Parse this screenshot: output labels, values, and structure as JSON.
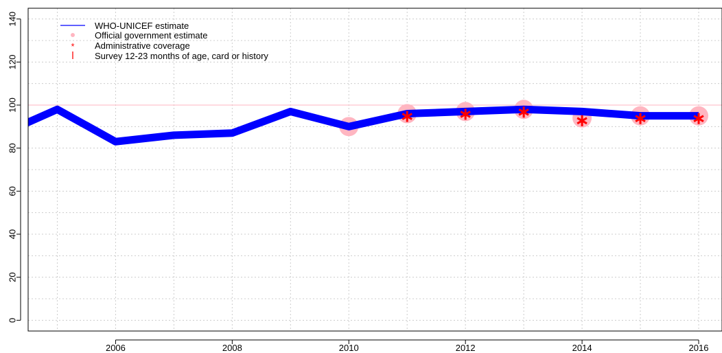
{
  "chart_data": {
    "type": "line",
    "title": "",
    "xlabel": "",
    "ylabel": "",
    "xlim": [
      2004.5,
      2016.4
    ],
    "ylim": [
      -5,
      145
    ],
    "x_ticks": [
      "2006",
      "2008",
      "2010",
      "2012",
      "2014",
      "2016"
    ],
    "y_ticks": [
      "0",
      "20",
      "40",
      "60",
      "80",
      "100",
      "120",
      "140"
    ],
    "grid": true,
    "reference_line": 100,
    "legend_position": "top-left",
    "legend": [
      {
        "label": "WHO-UNICEF estimate",
        "marker": "line",
        "color": "#0000ff"
      },
      {
        "label": "Official government estimate",
        "marker": "circle",
        "color": "#ffb6c1"
      },
      {
        "label": "Administrative coverage",
        "marker": "asterisk",
        "color": "#ff0000"
      },
      {
        "label": "Survey 12-23 months of age, card or history",
        "marker": "bar",
        "color": "#ff0000"
      }
    ],
    "series": [
      {
        "name": "WHO-UNICEF estimate",
        "color": "#0000ff",
        "x": [
          2004,
          2005,
          2006,
          2007,
          2008,
          2009,
          2010,
          2011,
          2012,
          2013,
          2014,
          2015,
          2016
        ],
        "values": [
          86,
          98,
          83,
          86,
          87,
          97,
          90,
          96,
          97,
          98,
          97,
          95,
          95
        ]
      },
      {
        "name": "Official government estimate",
        "color": "#ffb6c1",
        "x": [
          2010,
          2011,
          2012,
          2013,
          2014,
          2015,
          2016
        ],
        "values": [
          90,
          96,
          97,
          98,
          94,
          95,
          95
        ]
      },
      {
        "name": "Administrative coverage",
        "color": "#ff0000",
        "x": [
          2011,
          2012,
          2013,
          2014,
          2015,
          2016
        ],
        "values": [
          96,
          97,
          98,
          94,
          95,
          95
        ]
      }
    ]
  }
}
